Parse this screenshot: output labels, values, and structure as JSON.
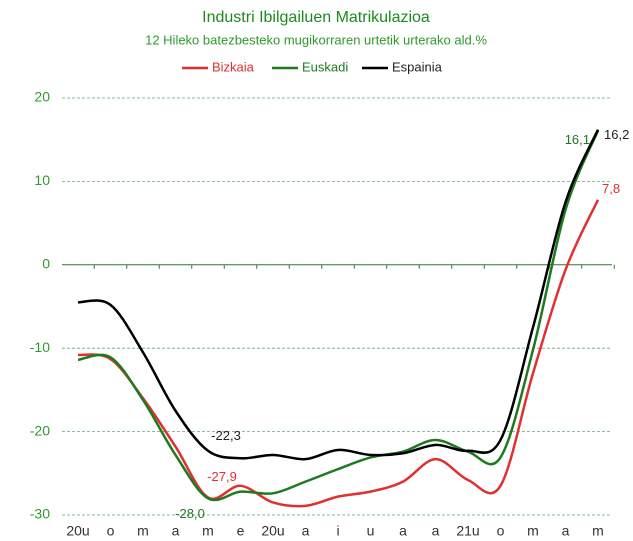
{
  "chart_data": {
    "type": "line",
    "title": "Industri Ibilgailuen Matrikulazioa",
    "subtitle": "12  Hileko batezbesteko mugikorraren urtetik urterako ald.%",
    "categories": [
      "20u",
      "o",
      "m",
      "a",
      "m",
      "e",
      "20u",
      "a",
      "i",
      "u",
      "a",
      "a",
      "21u",
      "o",
      "m",
      "a",
      "m"
    ],
    "series": [
      {
        "name": "Bizkaia",
        "color": "#e03030",
        "values": [
          -10.8,
          -11.3,
          -16.0,
          -21.8,
          -27.9,
          -26.5,
          -28.5,
          -28.9,
          -27.8,
          -27.2,
          -26.0,
          -23.3,
          -25.8,
          -26.5,
          -13.0,
          -0.6,
          7.8
        ],
        "value_labels": [
          null,
          null,
          null,
          null,
          "-27,9",
          null,
          null,
          null,
          null,
          null,
          null,
          null,
          null,
          null,
          null,
          null,
          "7,8"
        ]
      },
      {
        "name": "Euskadi",
        "color": "#1e7a1e",
        "values": [
          -11.4,
          -11.1,
          -16.2,
          -22.8,
          -28.0,
          -27.2,
          -27.4,
          -26.0,
          -24.5,
          -23.1,
          -22.4,
          -21.0,
          -22.4,
          -23.1,
          -10.2,
          6.6,
          16.1
        ],
        "value_labels": [
          null,
          null,
          null,
          null,
          "-28,0",
          null,
          null,
          null,
          null,
          null,
          null,
          null,
          null,
          null,
          null,
          null,
          "16,1"
        ]
      },
      {
        "name": "Espainia",
        "color": "#000000",
        "values": [
          -4.5,
          -4.8,
          -10.5,
          -17.5,
          -22.3,
          -23.2,
          -22.8,
          -23.3,
          -22.2,
          -22.8,
          -22.6,
          -21.6,
          -22.3,
          -21.0,
          -7.5,
          7.5,
          16.2
        ],
        "value_labels": [
          null,
          null,
          null,
          null,
          "-22,3",
          null,
          null,
          null,
          null,
          null,
          null,
          null,
          null,
          null,
          null,
          null,
          "16,2"
        ]
      }
    ],
    "ylim": [
      -30,
      20
    ],
    "yticks": [
      -30,
      -20,
      -10,
      0,
      10,
      20
    ],
    "grid": true,
    "legend": "top"
  }
}
